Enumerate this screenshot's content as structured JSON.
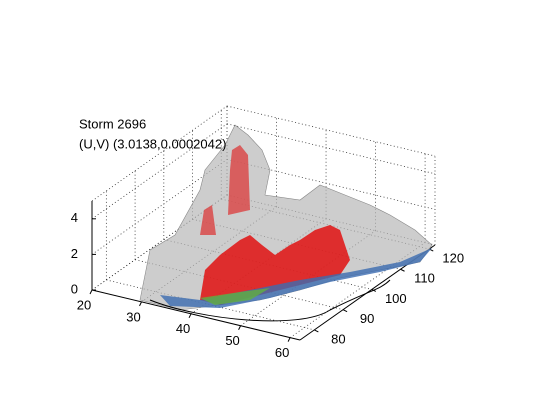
{
  "chart_data": {
    "type": "surface3d",
    "title": "Storm 2696",
    "subtitle": "(U,V) (3.0138,0.0002042)",
    "xlim": [
      20,
      62
    ],
    "ylim": [
      75,
      122
    ],
    "zlim": [
      0,
      5
    ],
    "xticks": [
      20,
      30,
      40,
      50,
      60
    ],
    "yticks": [
      80,
      90,
      100,
      110,
      120
    ],
    "zticks": [
      0,
      2,
      4
    ],
    "grid": true
  }
}
